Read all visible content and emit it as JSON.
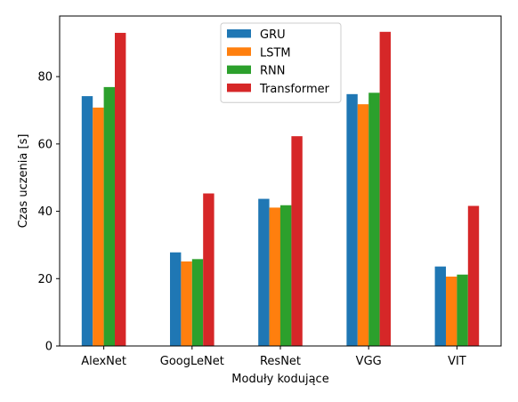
{
  "chart_data": {
    "type": "bar",
    "title": "",
    "xlabel": "Moduły kodujące",
    "ylabel": "Czas uczenia [s]",
    "categories": [
      "AlexNet",
      "GoogLeNet",
      "ResNet",
      "VGG",
      "VIT"
    ],
    "series": [
      {
        "name": "GRU",
        "color": "#1f77b4",
        "values": [
          74.2,
          27.8,
          43.7,
          74.8,
          23.6
        ]
      },
      {
        "name": "LSTM",
        "color": "#ff7f0e",
        "values": [
          70.8,
          25.1,
          41.1,
          71.8,
          20.6
        ]
      },
      {
        "name": "RNN",
        "color": "#2ca02c",
        "values": [
          76.9,
          25.8,
          41.8,
          75.2,
          21.2
        ]
      },
      {
        "name": "Transformer",
        "color": "#d62728",
        "values": [
          93.0,
          45.3,
          62.3,
          93.3,
          41.6
        ]
      }
    ],
    "ylim": [
      0,
      98
    ],
    "yticks": [
      0,
      20,
      40,
      60,
      80
    ],
    "grid": false,
    "legend": "top-center"
  }
}
